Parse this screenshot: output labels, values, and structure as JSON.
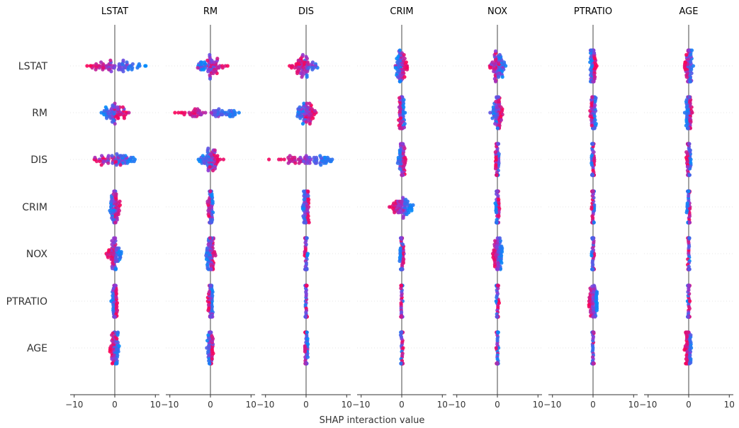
{
  "chart_data": {
    "type": "scatter",
    "subtype": "shap-interaction-summary",
    "features": [
      "LSTAT",
      "RM",
      "DIS",
      "CRIM",
      "NOX",
      "PTRATIO",
      "AGE"
    ],
    "xlabel": "SHAP interaction value",
    "xlim": [
      -11,
      11
    ],
    "xticks": [
      -10,
      0,
      10
    ],
    "xtick_labels": [
      "−10",
      "0",
      "10"
    ],
    "colors": {
      "high": "#ff0052",
      "mid": "#8a3bd8",
      "low": "#008bfb",
      "zero_line": "#999999",
      "grid": "#dddddd",
      "axis": "#333333"
    },
    "spreads": [
      [
        9.0,
        4.5,
        4.8,
        2.0,
        2.6,
        1.0,
        1.4
      ],
      [
        4.5,
        9.0,
        3.5,
        1.0,
        1.8,
        0.8,
        1.0
      ],
      [
        8.0,
        4.0,
        9.0,
        1.5,
        0.6,
        0.5,
        0.7
      ],
      [
        1.8,
        0.9,
        1.2,
        3.0,
        0.7,
        0.4,
        0.5
      ],
      [
        2.4,
        1.6,
        0.5,
        0.7,
        1.6,
        0.4,
        0.3
      ],
      [
        0.9,
        0.8,
        0.3,
        0.3,
        0.4,
        1.3,
        0.4
      ],
      [
        1.5,
        1.0,
        0.5,
        0.4,
        0.3,
        0.3,
        1.0
      ]
    ]
  }
}
